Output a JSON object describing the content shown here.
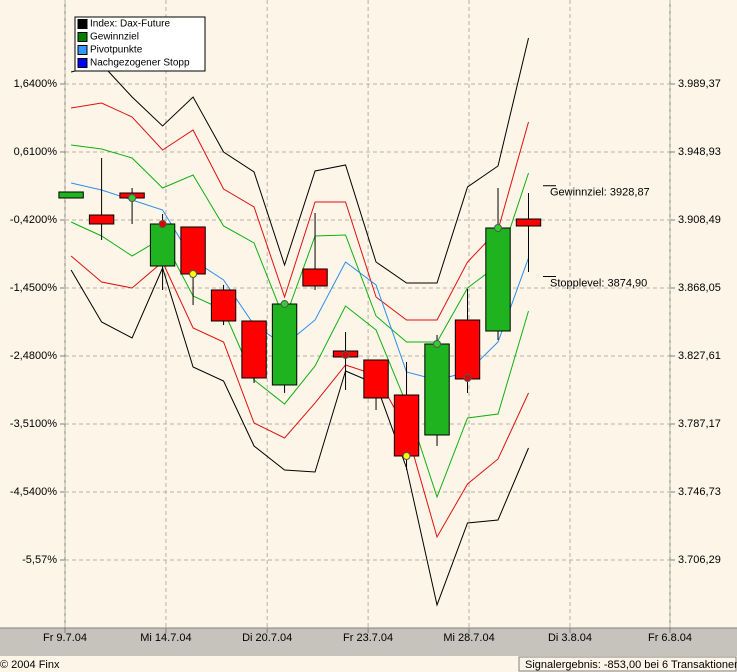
{
  "chart_data": {
    "type": "candlestick",
    "x": [
      0,
      1,
      2,
      3,
      4,
      5,
      6,
      7,
      8,
      9,
      10,
      11,
      12,
      13,
      14,
      15
    ],
    "xlim": [
      -0.2,
      19.64
    ],
    "xticks": [
      {
        "value": -0.2,
        "label": "Fr 9.7.04"
      },
      {
        "value": 3.11,
        "label": "Mi 14.7.04"
      },
      {
        "value": 6.43,
        "label": "Di 20.7.04"
      },
      {
        "value": 9.74,
        "label": "Fr 23.7.04"
      },
      {
        "value": 13.05,
        "label": "Mi 28.7.04"
      },
      {
        "value": 16.36,
        "label": "Di 3.8.04"
      },
      {
        "value": 19.64,
        "label": "Fr 6.8.04"
      }
    ],
    "ylim": [
      3665.85,
      4039.33
    ],
    "yticks": [
      {
        "value": 3989.37,
        "label": "3.989,37"
      },
      {
        "value": 3948.93,
        "label": "3.948,93"
      },
      {
        "value": 3908.49,
        "label": "3.908,49"
      },
      {
        "value": 3868.05,
        "label": "3.868,05"
      },
      {
        "value": 3827.61,
        "label": "3.827,61"
      },
      {
        "value": 3787.17,
        "label": "3.787,17"
      },
      {
        "value": 3746.73,
        "label": "3.746,73"
      },
      {
        "value": 3706.29,
        "label": "3.706,29"
      }
    ],
    "y2lim": [
      -6.6,
      2.912
    ],
    "y2ticks": [
      {
        "value": 1.64,
        "label": "1,6400%"
      },
      {
        "value": 0.61,
        "label": "0,6100%"
      },
      {
        "value": -0.42,
        "label": "-0,4200%"
      },
      {
        "value": -1.45,
        "label": "-1,4500%"
      },
      {
        "value": -2.48,
        "label": "-2,4800%"
      },
      {
        "value": -3.51,
        "label": "-3,5100%"
      },
      {
        "value": -4.54,
        "label": "-4,5400%"
      },
      {
        "value": -5.57,
        "label": "-5,57%"
      }
    ],
    "grid": true,
    "series": [
      {
        "up_color": "#1fb41f",
        "down_color": "#ff0000",
        "open": [
          3921.58,
          3911.47,
          3924.55,
          3881.14,
          3904.34,
          3866.87,
          3848.43,
          3810.38,
          3879.36,
          3830.59,
          3825.24,
          3804.42,
          3780.64,
          3849.02,
          3842.48,
          3909.09
        ],
        "high": [
          3925.15,
          3945.37,
          3927.53,
          3912.07,
          3904.34,
          3869.85,
          3848.43,
          3860.92,
          3912.66,
          3841.89,
          3825.24,
          3824.05,
          3840.1,
          3867.46,
          3927.53,
          3924.55
        ],
        "low": [
          3921.58,
          3896.6,
          3906.12,
          3866.87,
          3857.95,
          3846.05,
          3811.57,
          3805.63,
          3866.87,
          3807.4,
          3795.5,
          3759.82,
          3774.1,
          3805.63,
          3837.13,
          3877.57
        ],
        "close": [
          3925.15,
          3906.12,
          3921.58,
          3906.12,
          3876.38,
          3848.43,
          3814.54,
          3858.54,
          3869.25,
          3827.02,
          3802.64,
          3768.15,
          3834.75,
          3813.94,
          3903.74,
          3904.93
        ]
      }
    ],
    "lines": [
      {
        "color": "#000000",
        "values": [
          3996.51,
          4001.27,
          3981.64,
          3964.4,
          3981.64,
          3948.94,
          3937.04,
          3881.73,
          3937.64,
          3941.2,
          3883.52,
          3871.03,
          3871.03,
          3928.12,
          3940.61,
          4016.73
        ]
      },
      {
        "color": "#e01010",
        "values": [
          3975.1,
          3978.08,
          3969.75,
          3950.12,
          3962.02,
          3926.93,
          3916.23,
          3862.7,
          3919.2,
          3919.2,
          3862.7,
          3849.03,
          3849.03,
          3883.52,
          3902.55,
          3966.78
        ]
      },
      {
        "color": "#10b010",
        "values": [
          3953.1,
          3950.72,
          3945.37,
          3927.53,
          3935.26,
          3904.93,
          3894.82,
          3849.03,
          3898.98,
          3899.58,
          3851.4,
          3835.94,
          3835.94,
          3868.06,
          3881.73,
          3936.45
        ]
      },
      {
        "color": "#2a8cf0",
        "values": [
          3930.5,
          3926.34,
          3920.39,
          3914.44,
          3884.71,
          3872.81,
          3846.05,
          3834.16,
          3849.03,
          3883.52,
          3869.84,
          3818.1,
          3813.34,
          3818.1,
          3835.94,
          3885.9
        ]
      },
      {
        "color": "#10b010",
        "values": [
          3907.31,
          3898.98,
          3887.09,
          3897.79,
          3863.3,
          3854.97,
          3813.34,
          3799.07,
          3821.67,
          3857.35,
          3843.08,
          3799.07,
          3743.76,
          3790.75,
          3793.12,
          3854.38
        ]
      },
      {
        "color": "#e01010",
        "values": [
          3887.09,
          3871.62,
          3868.06,
          3883.52,
          3844.27,
          3835.94,
          3787.77,
          3778.85,
          3799.67,
          3822.26,
          3816.32,
          3783.61,
          3719.98,
          3751.5,
          3766.36,
          3805.61
        ]
      },
      {
        "color": "#000000",
        "values": [
          3878.76,
          3847.84,
          3838.32,
          3879.95,
          3821.08,
          3812.75,
          3774.09,
          3759.82,
          3758.63,
          3818.7,
          3810.97,
          3761.01,
          3679.54,
          3728.3,
          3730.09,
          3772.9
        ]
      }
    ],
    "markers": [
      {
        "x": 2,
        "value": 3921.58,
        "color": "#33cc33"
      },
      {
        "x": 3,
        "value": 3906.12,
        "color": "#e00000"
      },
      {
        "x": 4,
        "value": 3876.38,
        "color": "#ffff00"
      },
      {
        "x": 7,
        "value": 3858.54,
        "color": "#33cc33"
      },
      {
        "x": 9,
        "value": 3828.22,
        "color": "#e00000"
      },
      {
        "x": 11,
        "value": 3768.15,
        "color": "#ffff00"
      },
      {
        "x": 12,
        "value": 3834.75,
        "color": "#33cc33"
      },
      {
        "x": 13,
        "value": 3814.54,
        "color": "#e00000"
      },
      {
        "x": 14,
        "value": 3903.74,
        "color": "#33cc33"
      }
    ],
    "annotations": [
      {
        "text": "Gewinnziel: 3928,87",
        "value": 3928.87
      },
      {
        "text": "Stopplevel: 3874,90",
        "value": 3874.9
      }
    ],
    "legend": [
      {
        "name": "Index: Dax-Future",
        "color": "#000000"
      },
      {
        "name": "Gewinnziel",
        "color": "#008000"
      },
      {
        "name": "Pivotpunkte",
        "color": "#3399ff"
      },
      {
        "name": "Nachgezogener Stopp",
        "color": "#0000ff"
      }
    ],
    "copyright": "© 2004 Finx",
    "result": "Signalergebnis: -853,00 bei 6 Transaktionen"
  }
}
